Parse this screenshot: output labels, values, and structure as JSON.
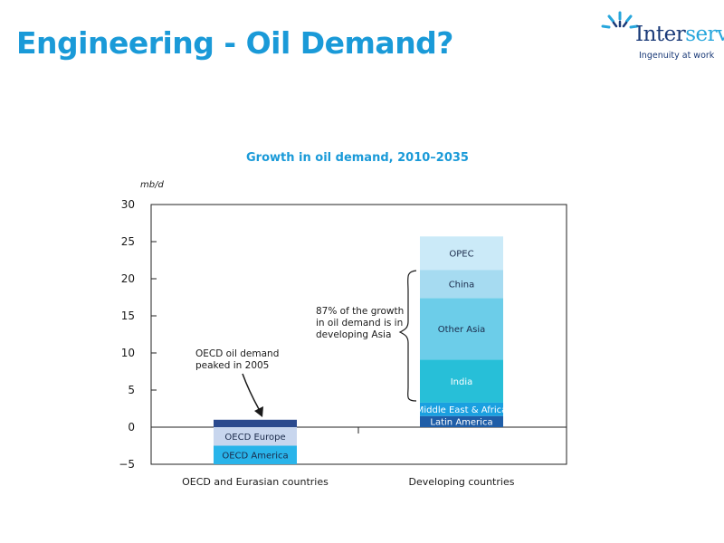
{
  "slide": {
    "title": "Engineering - Oil Demand?"
  },
  "logo": {
    "name_part1": "Inter",
    "name_part2": "serve",
    "tagline": "Ingenuity at work",
    "colors": {
      "dark": "#1a3a78",
      "light": "#27a6dc"
    }
  },
  "chart_data": {
    "type": "bar",
    "stacked": true,
    "title": "Growth in oil demand, 2010–2035",
    "ylabel": "mb/d",
    "xlabel": "",
    "ylim": [
      -5,
      30
    ],
    "yticks": [
      30,
      25,
      20,
      15,
      10,
      5,
      0,
      -5
    ],
    "ytick_labels": [
      "30",
      "25",
      "20",
      "15",
      "10",
      "5",
      "0",
      "−5"
    ],
    "grid": false,
    "categories": [
      "OECD and Eurasian countries",
      "Developing countries"
    ],
    "series": [
      {
        "name": "OECD Europe",
        "values": [
          -2.5,
          0
        ],
        "color": "#c8d6ee",
        "text_color": "#1a2a4a"
      },
      {
        "name": "OECD America",
        "values": [
          -2.5,
          0
        ],
        "color": "#29b4ea",
        "text_color": "#1a2a4a"
      },
      {
        "name": "",
        "values": [
          1.0,
          0
        ],
        "color": "#2b4a8e",
        "text_color": "#ffffff"
      },
      {
        "name": "Latin America",
        "values": [
          0,
          1.5
        ],
        "color": "#1f5ea8",
        "text_color": "#ffffff"
      },
      {
        "name": "Middle East & Africa",
        "values": [
          0,
          1.8
        ],
        "color": "#1aa0e0",
        "text_color": "#ffffff"
      },
      {
        "name": "India",
        "values": [
          0,
          5.8
        ],
        "color": "#27bfd8",
        "text_color": "#ffffff"
      },
      {
        "name": "Other Asia",
        "values": [
          0,
          8.3
        ],
        "color": "#6ccde9",
        "text_color": "#1a2a4a"
      },
      {
        "name": "China",
        "values": [
          0,
          3.8
        ],
        "color": "#a6dbf1",
        "text_color": "#1a2a4a"
      },
      {
        "name": "OPEC",
        "values": [
          0,
          4.5
        ],
        "color": "#cbeaf8",
        "text_color": "#1a2a4a"
      }
    ],
    "annotations": [
      {
        "lines": [
          "OECD oil demand",
          "peaked in 2005"
        ]
      },
      {
        "lines": [
          "87% of the growth",
          "in oil demand is in",
          "developing Asia"
        ]
      }
    ],
    "colors": {
      "title": "#1a9ad8",
      "axis": "#1a1a1a",
      "text": "#1a1a1a"
    }
  }
}
